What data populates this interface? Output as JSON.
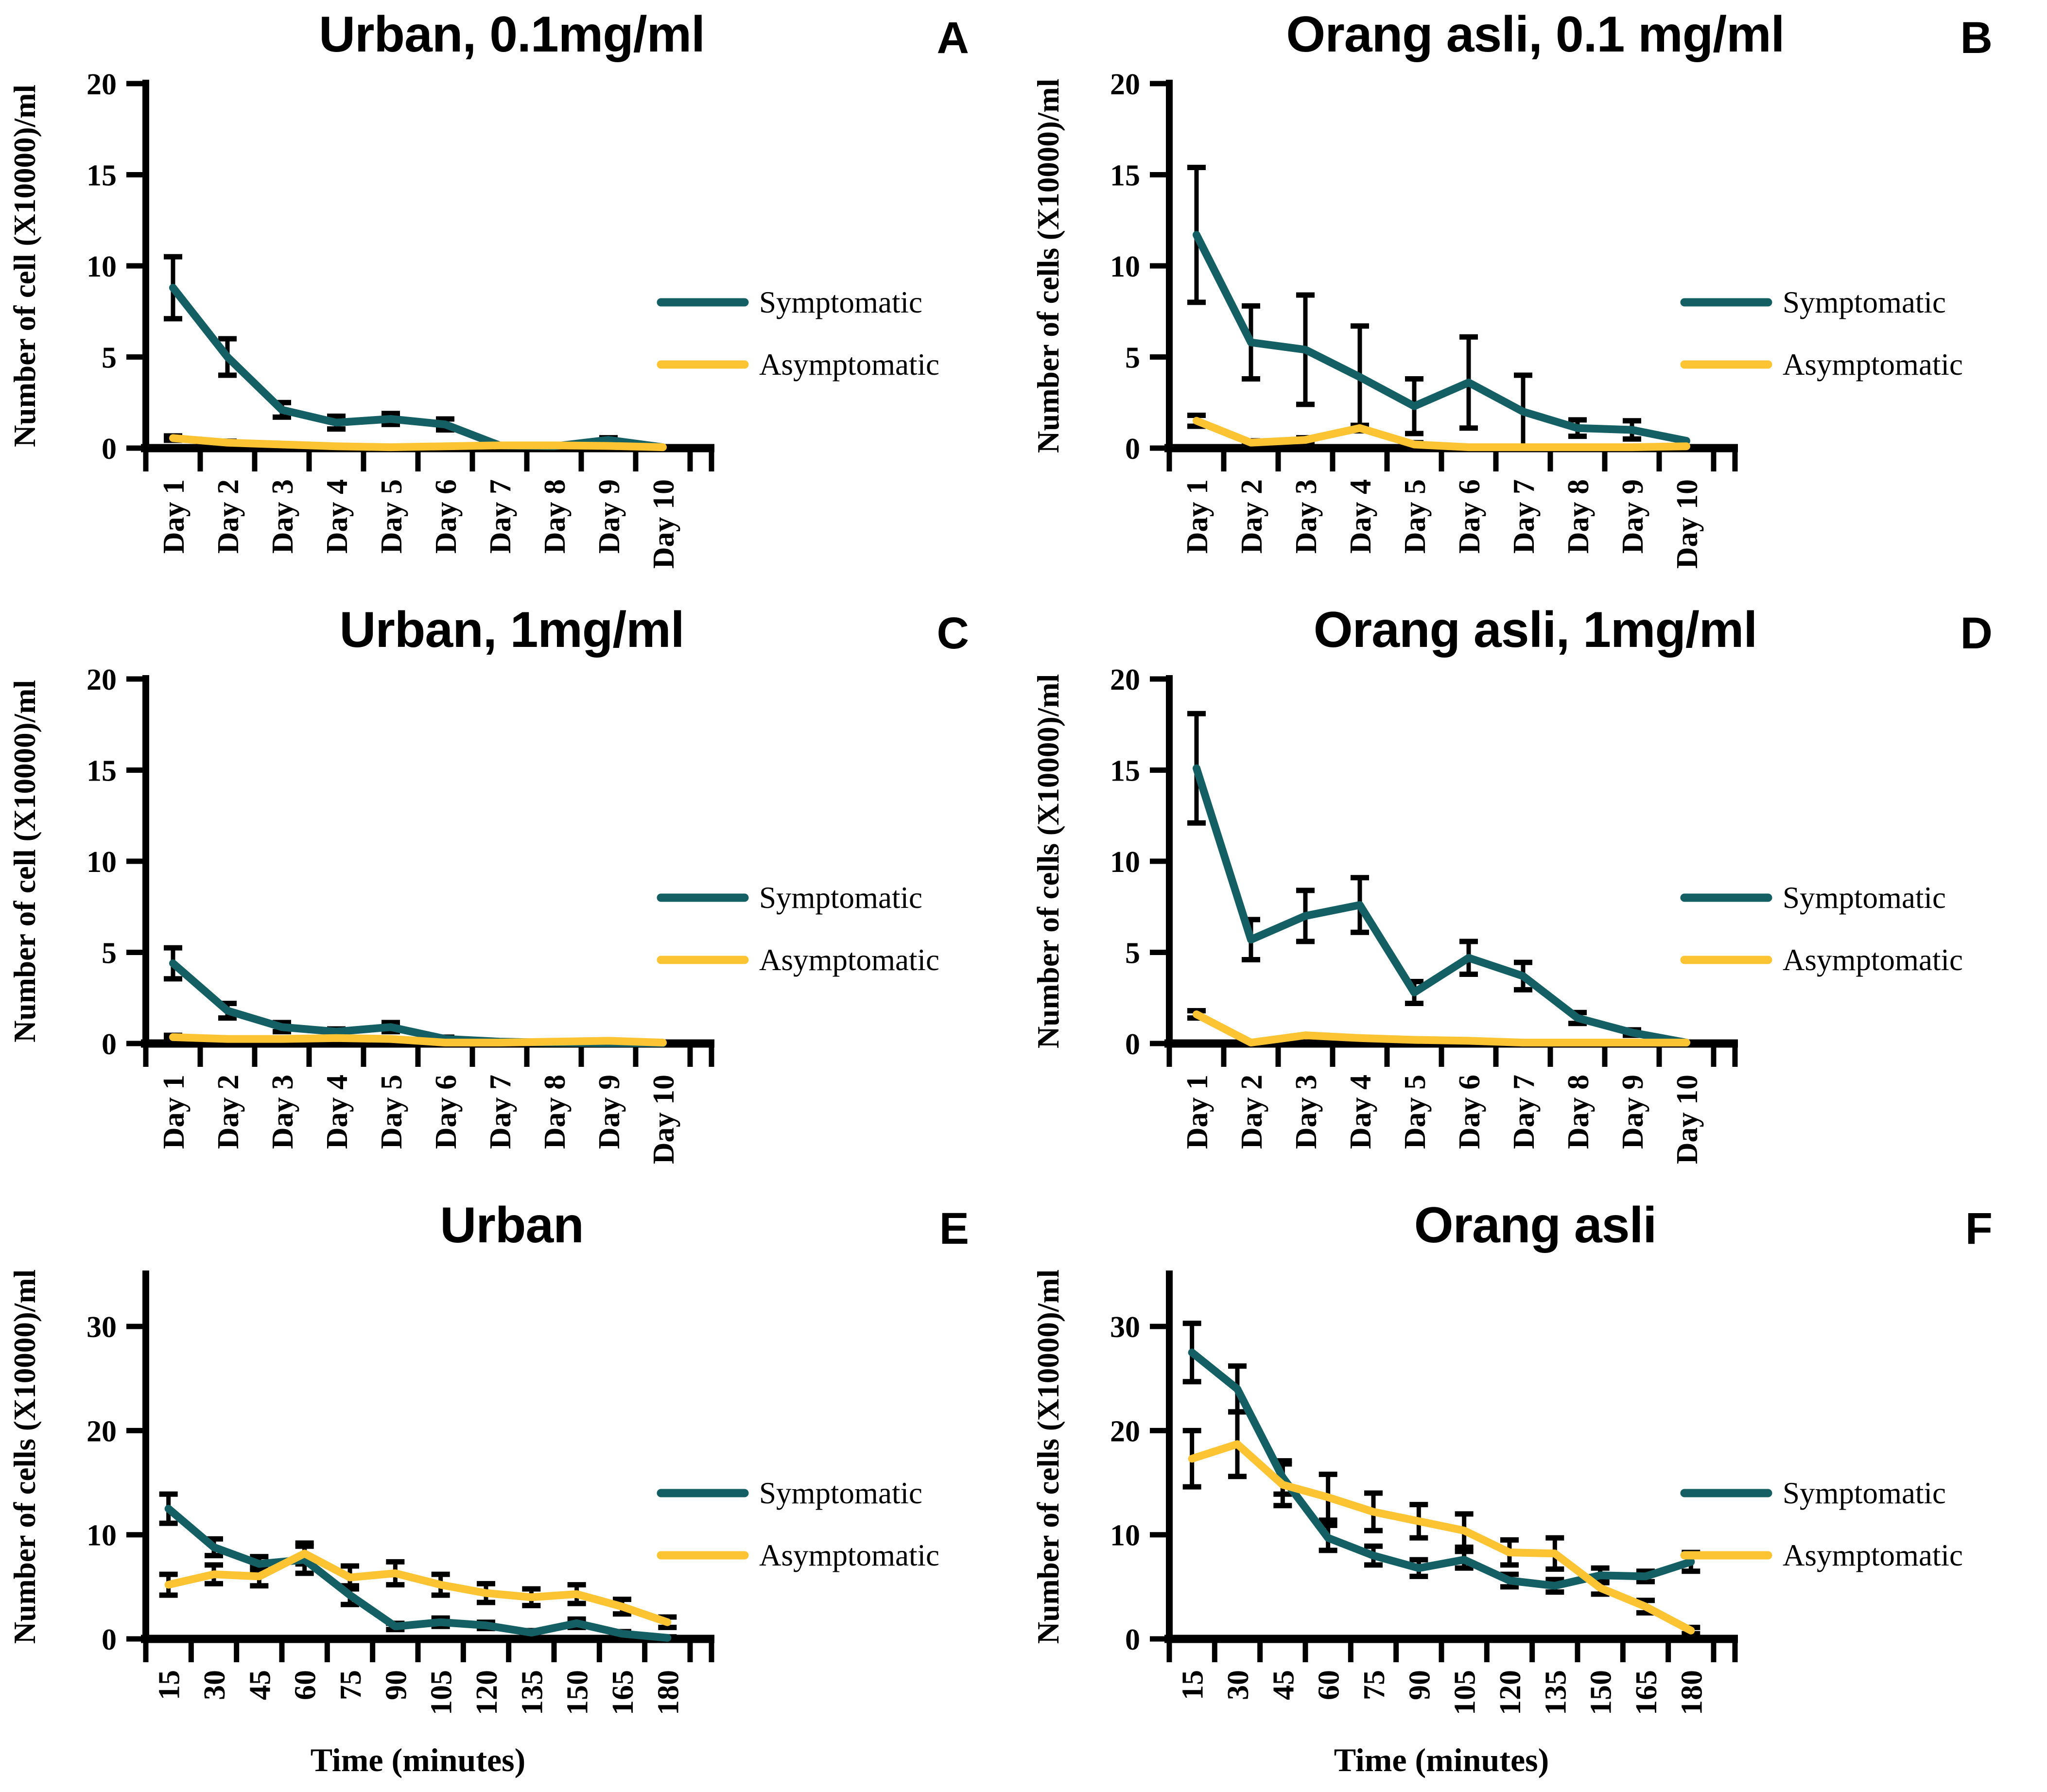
{
  "figure": {
    "background": "#ffffff",
    "axis_color": "#000000",
    "error_bar_color": "#000000"
  },
  "legend": {
    "position": "right",
    "entries": [
      "Symptomatic",
      "Asymptomatic"
    ]
  },
  "colors": {
    "symptomatic": "#135F63",
    "asymptomatic": "#FCC433"
  },
  "chart_data": [
    {
      "type": "line",
      "panel_label": "A",
      "title": "Urban, 0.1mg/ml",
      "ylabel": "Number of cell (X10000)/ml",
      "xlabel": "",
      "categories": [
        "Day 1",
        "Day 2",
        "Day 3",
        "Day 4",
        "Day 5",
        "Day 6",
        "Day 7",
        "Day 8",
        "Day 9",
        "Day 10"
      ],
      "ylim": [
        0,
        20
      ],
      "yticks": [
        0,
        5,
        10,
        15,
        20
      ],
      "axis_max": 20,
      "grid": false,
      "series": [
        {
          "name": "Symptomatic",
          "color": "#135F63",
          "values": [
            8.8,
            5.0,
            2.1,
            1.4,
            1.6,
            1.3,
            0.15,
            0.1,
            0.45,
            0.05
          ],
          "errors": [
            1.7,
            1.0,
            0.4,
            0.35,
            0.3,
            0.3,
            0,
            0,
            0.12,
            0
          ]
        },
        {
          "name": "Asymptomatic",
          "color": "#FCC433",
          "values": [
            0.55,
            0.3,
            0.2,
            0.1,
            0.05,
            0.1,
            0.15,
            0.15,
            0.12,
            0.05
          ],
          "errors": [
            0.12,
            0.08,
            0,
            0,
            0,
            0,
            0,
            0,
            0,
            0
          ]
        }
      ]
    },
    {
      "type": "line",
      "panel_label": "B",
      "title": "Orang asli, 0.1 mg/ml",
      "ylabel": "Number of cells (X10000)/ml",
      "xlabel": "",
      "categories": [
        "Day 1",
        "Day 2",
        "Day 3",
        "Day 4",
        "Day 5",
        "Day 6",
        "Day 7",
        "Day 8",
        "Day 9",
        "Day 10"
      ],
      "ylim": [
        0,
        20
      ],
      "yticks": [
        0,
        5,
        10,
        15,
        20
      ],
      "axis_max": 20,
      "grid": false,
      "series": [
        {
          "name": "Symptomatic",
          "color": "#135F63",
          "values": [
            11.7,
            5.8,
            5.4,
            3.9,
            2.3,
            3.6,
            2.0,
            1.1,
            1.0,
            0.4
          ],
          "errors": [
            3.7,
            2.0,
            3.0,
            2.8,
            1.5,
            2.5,
            2.0,
            0.45,
            0.5,
            0
          ]
        },
        {
          "name": "Asymptomatic",
          "color": "#FCC433",
          "values": [
            1.5,
            0.3,
            0.45,
            1.1,
            0.2,
            0.05,
            0.05,
            0.05,
            0.05,
            0.1
          ],
          "errors": [
            0.3,
            0.1,
            0.12,
            0.15,
            0.1,
            0,
            0,
            0,
            0,
            0
          ]
        }
      ]
    },
    {
      "type": "line",
      "panel_label": "C",
      "title": "Urban, 1mg/ml",
      "ylabel": "Number of cell (X10000)/ml",
      "xlabel": "",
      "categories": [
        "Day 1",
        "Day 2",
        "Day 3",
        "Day 4",
        "Day 5",
        "Day 6",
        "Day 7",
        "Day 8",
        "Day 9",
        "Day 10"
      ],
      "ylim": [
        0,
        20
      ],
      "yticks": [
        0,
        5,
        10,
        15,
        20
      ],
      "axis_max": 20,
      "grid": false,
      "series": [
        {
          "name": "Symptomatic",
          "color": "#135F63",
          "values": [
            4.4,
            1.8,
            0.9,
            0.65,
            0.9,
            0.25,
            0.1,
            0.05,
            0.02,
            0.02
          ],
          "errors": [
            0.85,
            0.4,
            0.25,
            0.15,
            0.25,
            0.1,
            0,
            0,
            0,
            0
          ]
        },
        {
          "name": "Asymptomatic",
          "color": "#FCC433",
          "values": [
            0.35,
            0.25,
            0.25,
            0.3,
            0.25,
            0.05,
            0.05,
            0.1,
            0.15,
            0.05
          ],
          "errors": [
            0.1,
            0,
            0,
            0,
            0,
            0,
            0,
            0,
            0,
            0
          ]
        }
      ]
    },
    {
      "type": "line",
      "panel_label": "D",
      "title": "Orang asli, 1mg/ml",
      "ylabel": "Number of cells (X10000)/ml",
      "xlabel": "",
      "categories": [
        "Day 1",
        "Day 2",
        "Day 3",
        "Day 4",
        "Day 5",
        "Day 6",
        "Day 7",
        "Day 8",
        "Day 9",
        "Day 10"
      ],
      "ylim": [
        0,
        20
      ],
      "yticks": [
        0,
        5,
        10,
        15,
        20
      ],
      "axis_max": 20,
      "grid": false,
      "series": [
        {
          "name": "Symptomatic",
          "color": "#135F63",
          "values": [
            15.1,
            5.7,
            7.0,
            7.6,
            2.8,
            4.7,
            3.7,
            1.4,
            0.6,
            0.05
          ],
          "errors": [
            3.0,
            1.1,
            1.4,
            1.5,
            0.6,
            0.9,
            0.75,
            0.3,
            0.15,
            0
          ]
        },
        {
          "name": "Asymptomatic",
          "color": "#FCC433",
          "values": [
            1.6,
            0.05,
            0.45,
            0.3,
            0.2,
            0.15,
            0.05,
            0.05,
            0.05,
            0.05
          ],
          "errors": [
            0.2,
            0,
            0,
            0,
            0,
            0,
            0,
            0,
            0,
            0
          ]
        }
      ]
    },
    {
      "type": "line",
      "panel_label": "E",
      "title": "Urban",
      "ylabel": "Number of cells (X10000)/ml",
      "xlabel": "Time (minutes)",
      "categories": [
        "15",
        "30",
        "45",
        "60",
        "75",
        "90",
        "105",
        "120",
        "135",
        "150",
        "165",
        "180"
      ],
      "ylim": [
        0,
        35
      ],
      "yticks": [
        0,
        10,
        20,
        30
      ],
      "axis_max": 35,
      "grid": false,
      "series": [
        {
          "name": "Symptomatic",
          "color": "#135F63",
          "values": [
            12.5,
            8.8,
            7.2,
            7.6,
            4.2,
            1.2,
            1.6,
            1.3,
            0.6,
            1.5,
            0.5,
            0.1
          ],
          "errors": [
            1.4,
            0.8,
            0.7,
            1.3,
            0.9,
            0.3,
            0.4,
            0.3,
            0.2,
            0.4,
            0.2,
            0.1
          ]
        },
        {
          "name": "Asymptomatic",
          "color": "#FCC433",
          "values": [
            5.2,
            6.2,
            6.0,
            8.2,
            5.9,
            6.3,
            5.2,
            4.4,
            4.0,
            4.3,
            3.1,
            1.6
          ],
          "errors": [
            1.0,
            0.9,
            0.9,
            1.0,
            1.1,
            1.1,
            1.0,
            0.9,
            0.8,
            0.9,
            0.7,
            0.5
          ]
        }
      ]
    },
    {
      "type": "line",
      "panel_label": "F",
      "title": "Orang asli",
      "ylabel": "Number of cells (X10000)/ml",
      "xlabel": "Time (minutes)",
      "categories": [
        "15",
        "30",
        "45",
        "60",
        "75",
        "90",
        "105",
        "120",
        "135",
        "150",
        "165",
        "180"
      ],
      "ylim": [
        0,
        35
      ],
      "yticks": [
        0,
        10,
        20,
        30
      ],
      "axis_max": 35,
      "grid": false,
      "series": [
        {
          "name": "Symptomatic",
          "color": "#135F63",
          "values": [
            27.5,
            24.0,
            15.5,
            9.7,
            8.0,
            6.8,
            7.6,
            5.6,
            5.1,
            6.1,
            6.0,
            7.4
          ],
          "errors": [
            2.8,
            2.2,
            1.6,
            1.2,
            0.9,
            0.8,
            0.8,
            0.6,
            0.6,
            0.7,
            0.5,
            0.9
          ]
        },
        {
          "name": "Asymptomatic",
          "color": "#FCC433",
          "values": [
            17.3,
            18.7,
            14.8,
            13.6,
            12.2,
            11.3,
            10.4,
            8.3,
            8.2,
            4.9,
            3.1,
            0.8
          ],
          "errors": [
            2.7,
            3.1,
            2.0,
            2.2,
            1.8,
            1.6,
            1.6,
            1.2,
            1.5,
            0.6,
            0.6,
            0.3
          ]
        }
      ]
    }
  ]
}
